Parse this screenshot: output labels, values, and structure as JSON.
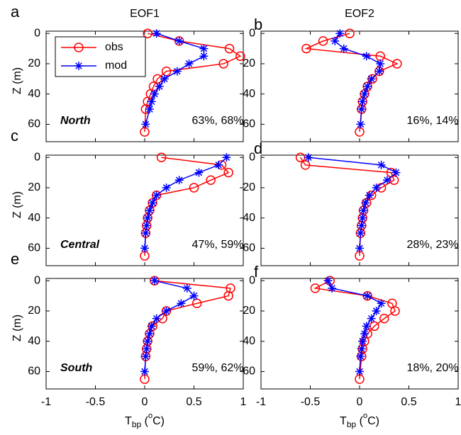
{
  "chart_data": [
    {
      "type": "line",
      "panel_label": "a",
      "title": "EOF1",
      "region": "North",
      "stats": "63%, 68%",
      "ylabel": "Z (m)",
      "legend": "upper left",
      "xlim": [
        -1,
        1
      ],
      "ylim": [
        -1.5,
        71.5
      ],
      "y_reversed": true,
      "xticks": [
        -1,
        -0.5,
        0,
        0.5,
        1
      ],
      "yticks": [
        0,
        20,
        40,
        60
      ],
      "series": [
        {
          "name": "obs",
          "color": "#ff0000",
          "marker": "circle",
          "depth": [
            0,
            5,
            10,
            15,
            20,
            25,
            30,
            35,
            40,
            45,
            50,
            65
          ],
          "values": [
            0.03,
            0.35,
            0.86,
            0.97,
            0.8,
            0.22,
            0.13,
            0.09,
            0.06,
            0.03,
            0.01,
            0
          ]
        },
        {
          "name": "mod",
          "color": "#0000ff",
          "marker": "star",
          "depth": [
            0,
            5,
            10,
            15,
            20,
            25,
            30,
            35,
            40,
            45,
            50,
            60
          ],
          "values": [
            0.12,
            0.35,
            0.6,
            0.6,
            0.45,
            0.33,
            0.2,
            0.15,
            0.1,
            0.07,
            0.05,
            0.01
          ]
        }
      ]
    },
    {
      "type": "line",
      "panel_label": "b",
      "title": "EOF2",
      "stats": "16%, 14%",
      "xlim": [
        -1,
        1
      ],
      "ylim": [
        -1.5,
        71.5
      ],
      "y_reversed": true,
      "xticks": [
        -1,
        -0.5,
        0,
        0.5,
        1
      ],
      "yticks": [
        0,
        20,
        40,
        60
      ],
      "series": [
        {
          "color": "#ff0000",
          "marker": "circle",
          "depth": [
            0,
            5,
            10,
            15,
            20,
            25,
            30,
            35,
            40,
            45,
            50,
            65
          ],
          "values": [
            -0.1,
            -0.37,
            -0.54,
            0.21,
            0.38,
            0.2,
            0.13,
            0.08,
            0.05,
            0.03,
            0.02,
            0
          ]
        },
        {
          "color": "#0000ff",
          "marker": "star",
          "depth": [
            0,
            5,
            10,
            15,
            20,
            25,
            30,
            35,
            40,
            45,
            50,
            60
          ],
          "values": [
            -0.2,
            -0.25,
            -0.16,
            0.07,
            0.21,
            0.2,
            0.12,
            0.08,
            0.05,
            0.03,
            0.02,
            0.01
          ]
        }
      ]
    },
    {
      "type": "line",
      "panel_label": "c",
      "region": "Central",
      "stats": "47%, 59%",
      "ylabel": "Z (m)",
      "xlim": [
        -1,
        1
      ],
      "ylim": [
        -1.5,
        71.5
      ],
      "y_reversed": true,
      "xticks": [
        -1,
        -0.5,
        0,
        0.5,
        1
      ],
      "yticks": [
        0,
        20,
        40,
        60
      ],
      "series": [
        {
          "color": "#ff0000",
          "marker": "circle",
          "depth": [
            0,
            5,
            10,
            15,
            20,
            25,
            30,
            35,
            40,
            45,
            50,
            65
          ],
          "values": [
            0.17,
            0.78,
            0.85,
            0.67,
            0.5,
            0.12,
            0.08,
            0.05,
            0.03,
            0.02,
            0.01,
            0
          ]
        },
        {
          "color": "#0000ff",
          "marker": "star",
          "depth": [
            0,
            5,
            10,
            15,
            20,
            25,
            30,
            35,
            40,
            45,
            50,
            60
          ],
          "values": [
            0.83,
            0.75,
            0.55,
            0.35,
            0.22,
            0.12,
            0.08,
            0.05,
            0.03,
            0.02,
            0.01,
            0
          ]
        }
      ]
    },
    {
      "type": "line",
      "panel_label": "d",
      "stats": "28%, 23%",
      "xlim": [
        -1,
        1
      ],
      "ylim": [
        -1.5,
        71.5
      ],
      "y_reversed": true,
      "xticks": [
        -1,
        -0.5,
        0,
        0.5,
        1
      ],
      "yticks": [
        0,
        20,
        40,
        60
      ],
      "series": [
        {
          "color": "#ff0000",
          "marker": "circle",
          "depth": [
            0,
            5,
            10,
            15,
            20,
            25,
            30,
            35,
            40,
            45,
            50,
            65
          ],
          "values": [
            -0.6,
            -0.55,
            0.32,
            0.35,
            0.22,
            0.12,
            0.07,
            0.04,
            0.03,
            0.02,
            0.01,
            0
          ]
        },
        {
          "color": "#0000ff",
          "marker": "star",
          "depth": [
            0,
            5,
            10,
            15,
            20,
            25,
            30,
            35,
            40,
            45,
            50,
            60
          ],
          "values": [
            -0.52,
            0.22,
            0.37,
            0.28,
            0.17,
            0.1,
            0.06,
            0.04,
            0.03,
            0.02,
            0.01,
            0
          ]
        }
      ]
    },
    {
      "type": "line",
      "panel_label": "e",
      "region": "South",
      "stats": "59%, 62%",
      "ylabel": "Z (m)",
      "xlabel": [
        "T",
        "bp",
        " (",
        "o",
        "C)"
      ],
      "xlim": [
        -1,
        1
      ],
      "ylim": [
        -1.5,
        71.5
      ],
      "y_reversed": true,
      "xticks": [
        -1,
        -0.5,
        0,
        0.5,
        1
      ],
      "yticks": [
        0,
        20,
        40,
        60
      ],
      "series": [
        {
          "color": "#ff0000",
          "marker": "circle",
          "depth": [
            0,
            5,
            10,
            15,
            20,
            25,
            30,
            35,
            40,
            45,
            50,
            65
          ],
          "values": [
            0.1,
            0.87,
            0.85,
            0.53,
            0.22,
            0.18,
            0.08,
            0.05,
            0.03,
            0.02,
            0.01,
            0
          ]
        },
        {
          "color": "#0000ff",
          "marker": "star",
          "depth": [
            0,
            5,
            10,
            15,
            20,
            25,
            30,
            35,
            40,
            45,
            50,
            60
          ],
          "values": [
            0.1,
            0.43,
            0.5,
            0.37,
            0.22,
            0.12,
            0.07,
            0.05,
            0.03,
            0.02,
            0.01,
            0
          ]
        }
      ]
    },
    {
      "type": "line",
      "panel_label": "f",
      "stats": "18%, 20%",
      "xlabel": [
        "T",
        "bp",
        " (",
        "o",
        "C)"
      ],
      "xlim": [
        -1,
        1
      ],
      "ylim": [
        -1.5,
        71.5
      ],
      "y_reversed": true,
      "xticks": [
        -1,
        -0.5,
        0,
        0.5,
        1
      ],
      "yticks": [
        0,
        20,
        40,
        60
      ],
      "series": [
        {
          "color": "#ff0000",
          "marker": "circle",
          "depth": [
            0,
            5,
            10,
            15,
            20,
            25,
            30,
            35,
            40,
            45,
            50,
            65
          ],
          "values": [
            -0.3,
            -0.45,
            0.08,
            0.33,
            0.36,
            0.25,
            0.15,
            0.08,
            0.05,
            0.03,
            0.02,
            0
          ]
        },
        {
          "color": "#0000ff",
          "marker": "star",
          "depth": [
            0,
            5,
            10,
            15,
            20,
            25,
            30,
            35,
            40,
            45,
            50,
            60
          ],
          "values": [
            -0.32,
            -0.28,
            0.08,
            0.22,
            0.17,
            0.12,
            0.07,
            0.05,
            0.03,
            0.02,
            0.01,
            0
          ]
        }
      ]
    }
  ]
}
